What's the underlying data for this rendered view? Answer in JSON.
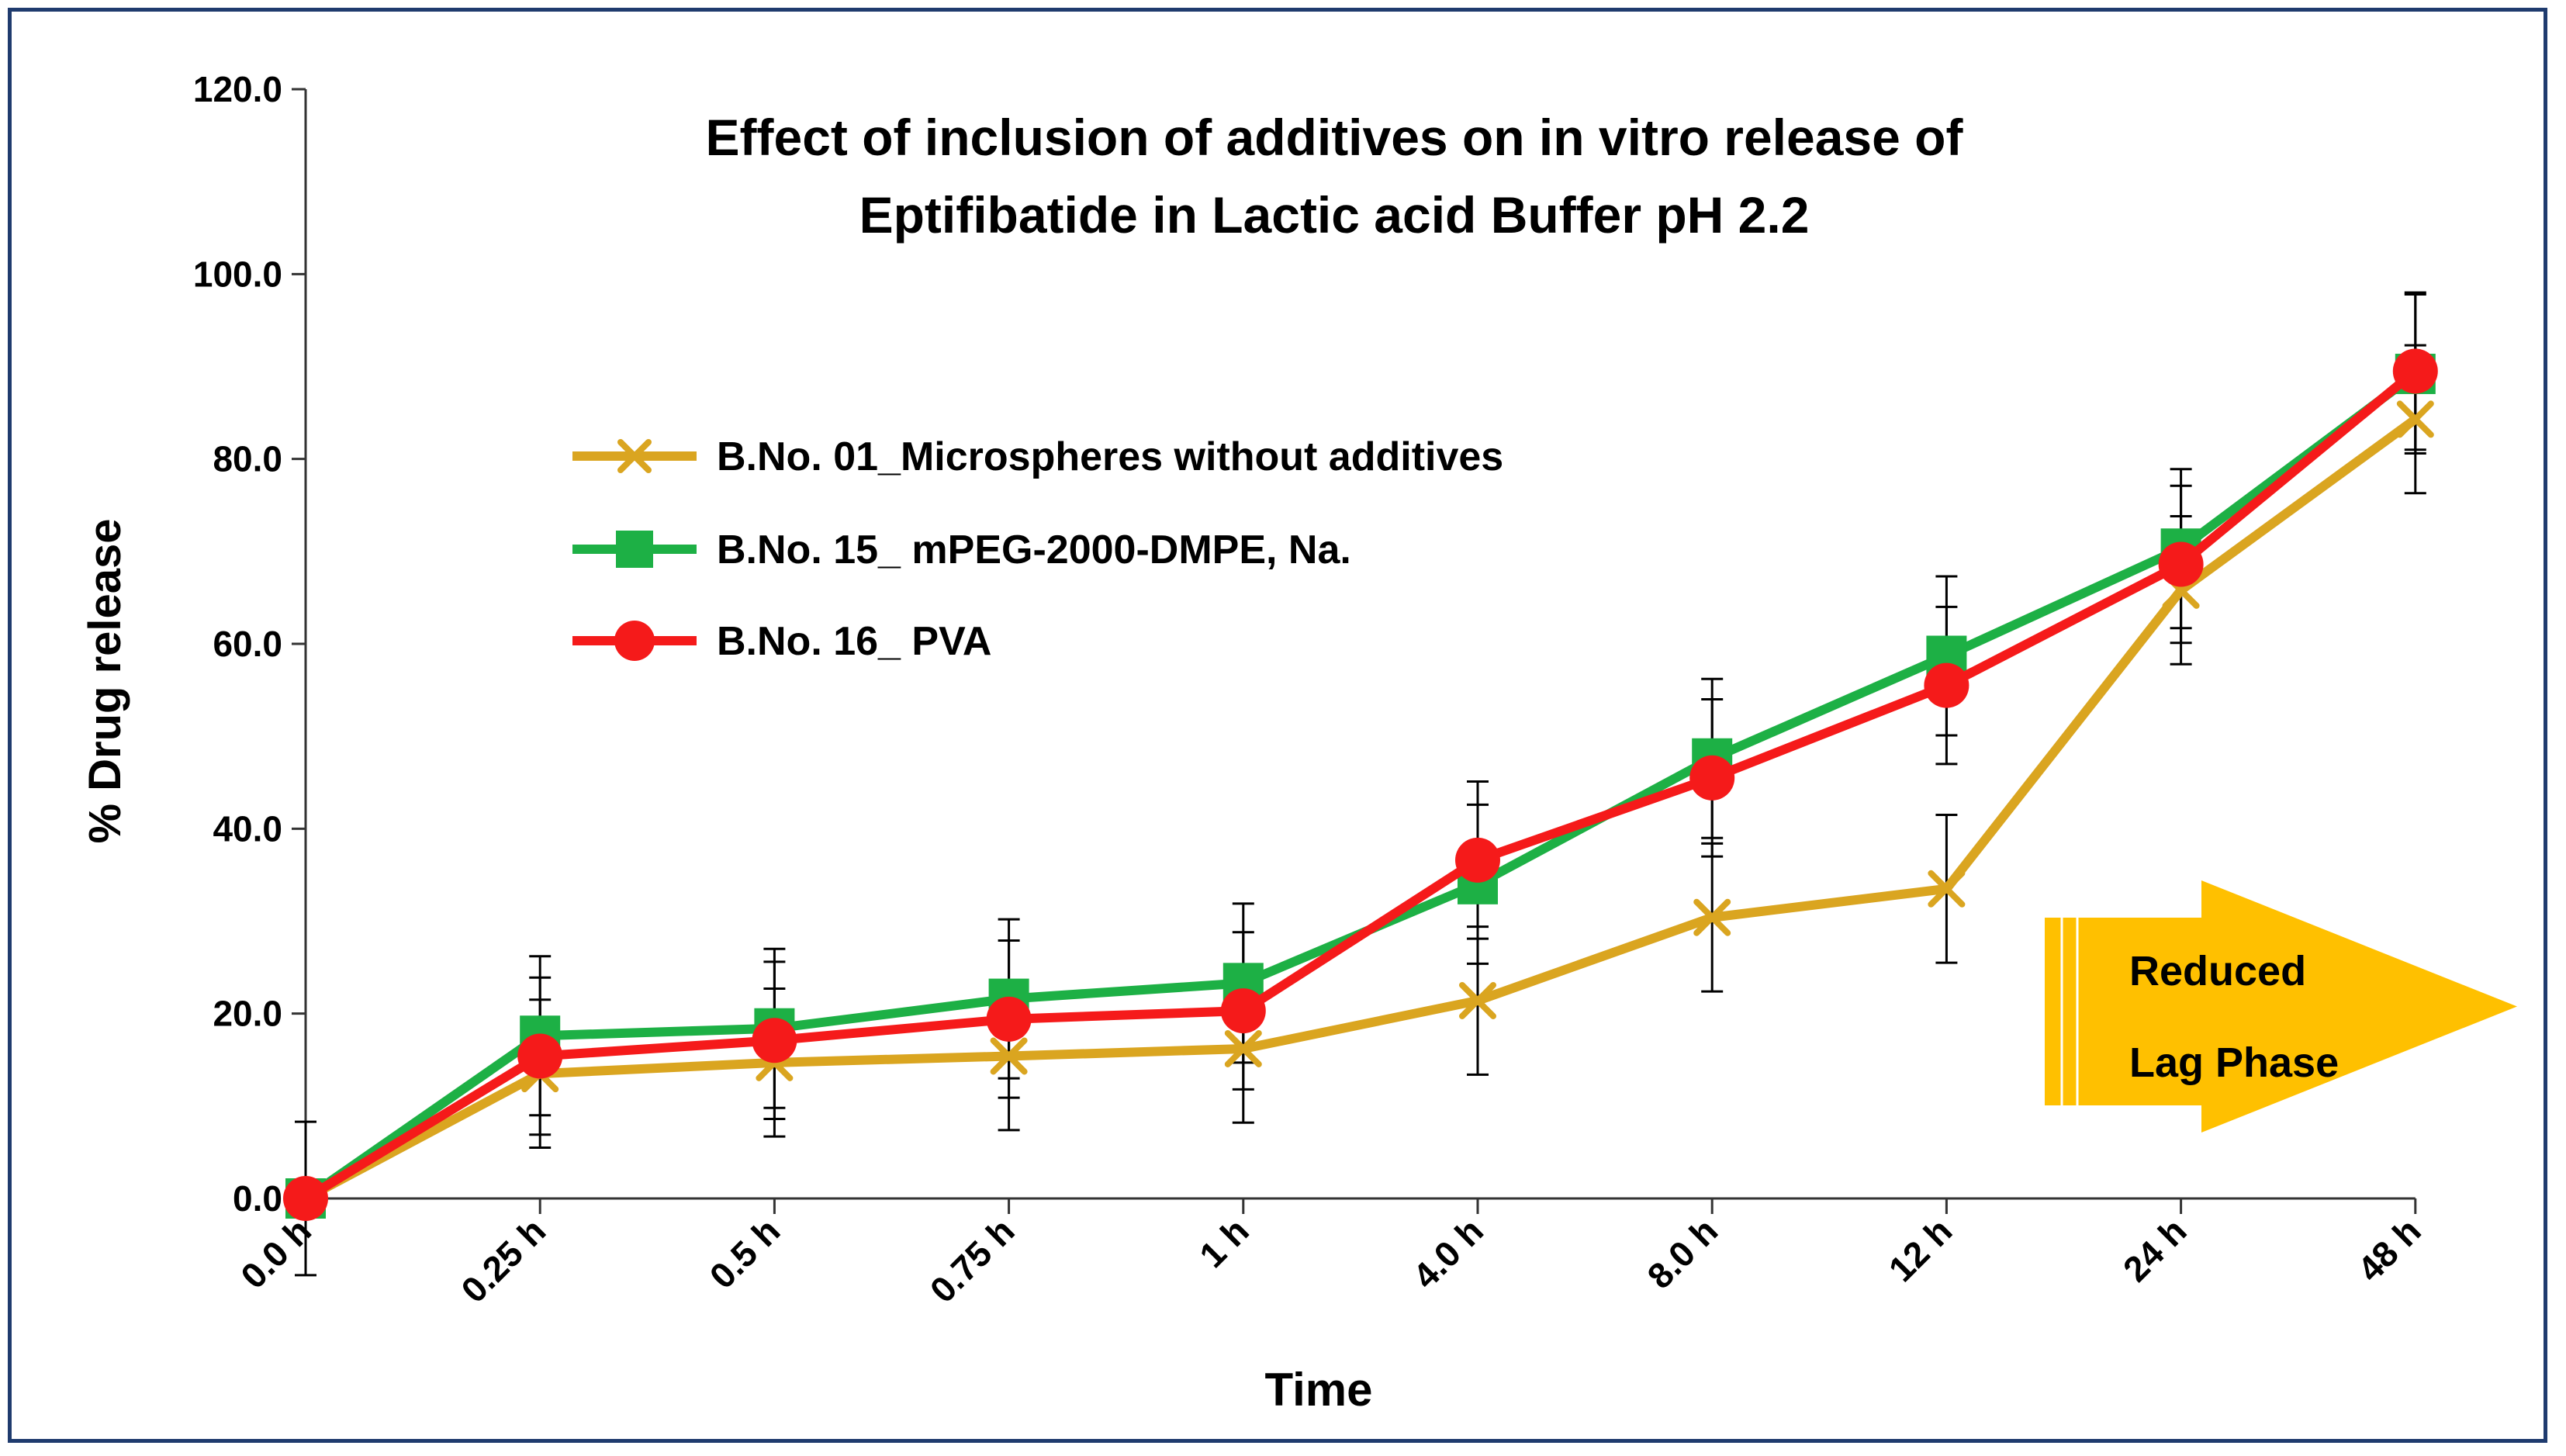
{
  "chart_data": {
    "type": "line",
    "title": [
      "Effect of inclusion of additives on in vitro release of",
      "Eptifibatide in Lactic acid Buffer pH 2.2"
    ],
    "xlabel": "Time",
    "ylabel": "% Drug release",
    "categories": [
      "0.0 h",
      "0.25 h",
      "0.5 h",
      "0.75 h",
      "1 h",
      "4.0 h",
      "8.0 h",
      "12 h",
      "24 h",
      "48 h"
    ],
    "ylim": [
      0,
      120
    ],
    "yticks": [
      "0.0",
      "20.0",
      "40.0",
      "60.0",
      "80.0",
      "100.0",
      "120.0"
    ],
    "series": [
      {
        "name": "B.No. 01_Microspheres without additives",
        "color": "#DAA520",
        "marker": "x",
        "values": [
          0.0,
          13.5,
          14.7,
          15.4,
          16.2,
          21.4,
          30.4,
          33.5,
          65.8,
          84.3
        ],
        "errors": [
          8.3,
          8.0,
          8.0,
          8.0,
          8.0,
          8.0,
          8.0,
          8.0,
          8.0,
          8.0
        ]
      },
      {
        "name": "B.No. 15_ mPEG-2000-DMPE, Na.",
        "color": "#1DB045",
        "marker": "square",
        "values": [
          0.0,
          17.6,
          18.4,
          21.6,
          23.3,
          34.0,
          47.6,
          58.7,
          70.3,
          89.2
        ],
        "errors": [
          0,
          8.6,
          8.6,
          8.6,
          8.6,
          8.6,
          8.6,
          8.6,
          8.6,
          8.6
        ]
      },
      {
        "name": "B.No. 16_ PVA",
        "color": "#F51A1A",
        "marker": "circle",
        "values": [
          0.0,
          15.4,
          17.1,
          19.4,
          20.3,
          36.6,
          45.5,
          55.5,
          68.6,
          89.5
        ],
        "errors": [
          0,
          8.5,
          8.5,
          8.5,
          8.5,
          8.5,
          8.5,
          8.5,
          8.5,
          8.5
        ]
      }
    ],
    "annotation": {
      "lines": [
        "Reduced",
        "Lag Phase"
      ],
      "color": "#FFC000"
    },
    "legend": "upper-left"
  }
}
